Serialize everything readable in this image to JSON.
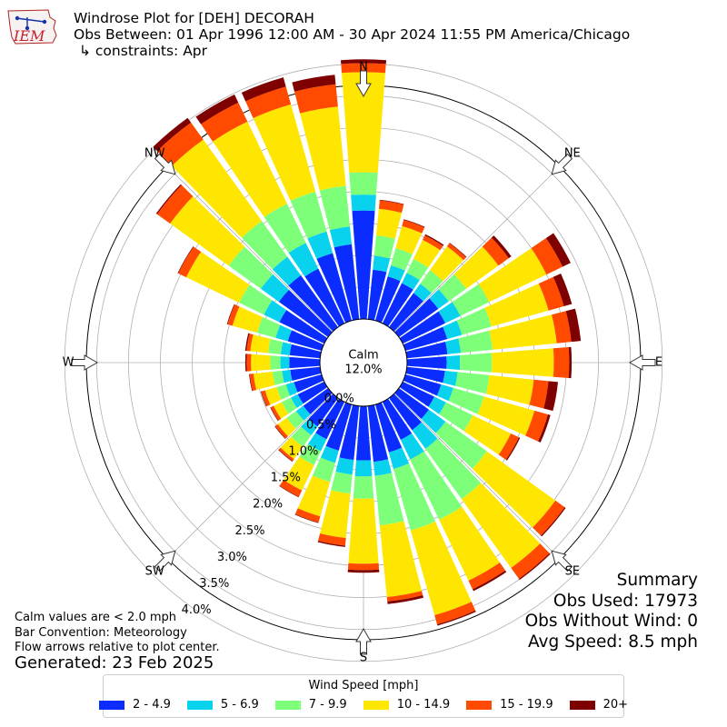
{
  "header": {
    "logo_text": "IEM",
    "title": "Windrose Plot for [DEH] DECORAH",
    "subtitle": "Obs Between: 01 Apr 1996 12:00 AM - 30 Apr 2024 11:55 PM America/Chicago",
    "constraints": "↳ constraints: Apr"
  },
  "notes": {
    "calm_note": "Calm values are < 2.0 mph",
    "bar_convention": "Bar Convention: Meteorology",
    "flow_note": "Flow arrows relative to plot center.",
    "generated": "Generated: 23 Feb 2025"
  },
  "summary": {
    "title": "Summary",
    "obs_used": "Obs Used: 17973",
    "obs_without_wind": "Obs Without Wind: 0",
    "avg_speed": "Avg Speed: 8.5 mph"
  },
  "legend": {
    "title": "Wind Speed [mph]",
    "items": [
      {
        "label": "2 - 4.9",
        "color": "#0a2cff"
      },
      {
        "label": "5 - 6.9",
        "color": "#08d2ee"
      },
      {
        "label": "7 - 9.9",
        "color": "#7dff7a"
      },
      {
        "label": "10 - 14.9",
        "color": "#ffe600"
      },
      {
        "label": "15 - 19.9",
        "color": "#ff4a00"
      },
      {
        "label": "20+",
        "color": "#7f0000"
      }
    ]
  },
  "chart_data": {
    "type": "windrose",
    "calm_label": "Calm",
    "calm_value": "12.0%",
    "radial_ticks": [
      "0.0%",
      "0.5%",
      "1.0%",
      "1.5%",
      "2.0%",
      "2.5%",
      "3.0%",
      "3.5%",
      "4.0%"
    ],
    "radial_tick_values": [
      0,
      0.5,
      1.0,
      1.5,
      2.0,
      2.5,
      3.0,
      3.5,
      4.0
    ],
    "compass_labels": [
      "N",
      "NE",
      "E",
      "SE",
      "S",
      "SW",
      "W",
      "NW"
    ],
    "speed_bins": [
      "2 - 4.9",
      "5 - 6.9",
      "7 - 9.9",
      "10 - 14.9",
      "15 - 19.9",
      "20+"
    ],
    "directions_deg": [
      0,
      10,
      20,
      30,
      40,
      50,
      60,
      70,
      80,
      90,
      100,
      110,
      120,
      130,
      140,
      150,
      160,
      170,
      180,
      190,
      200,
      210,
      220,
      230,
      240,
      250,
      260,
      270,
      280,
      290,
      300,
      310,
      320,
      330,
      340,
      350
    ],
    "cumulative_percent": [
      [
        1.7,
        1.95,
        2.3,
        3.87,
        4.01,
        4.07
      ],
      [
        0.78,
        1.0,
        1.32,
        1.74,
        1.87,
        1.88
      ],
      [
        0.72,
        0.9,
        1.18,
        1.54,
        1.64,
        1.65
      ],
      [
        0.7,
        0.88,
        1.12,
        1.45,
        1.53,
        1.55
      ],
      [
        0.66,
        0.84,
        1.1,
        1.56,
        1.62,
        1.63
      ],
      [
        0.76,
        0.96,
        1.3,
        1.92,
        2.12,
        2.17
      ],
      [
        0.74,
        1.0,
        1.5,
        2.5,
        2.78,
        2.92
      ],
      [
        0.68,
        0.92,
        1.4,
        2.33,
        2.58,
        2.71
      ],
      [
        0.64,
        0.85,
        1.35,
        2.36,
        2.59,
        2.74
      ],
      [
        0.62,
        0.83,
        1.33,
        2.3,
        2.54,
        2.58
      ],
      [
        0.6,
        0.8,
        1.3,
        2.0,
        2.23,
        2.38
      ],
      [
        0.58,
        0.78,
        1.28,
        2.1,
        2.32,
        2.36
      ],
      [
        0.55,
        0.75,
        1.22,
        1.88,
        2.02,
        2.04
      ],
      [
        0.58,
        0.9,
        1.7,
        3.02,
        3.2,
        3.22
      ],
      [
        0.62,
        0.98,
        1.95,
        3.28,
        3.49,
        3.51
      ],
      [
        0.66,
        1.0,
        2.05,
        3.11,
        3.26,
        3.29
      ],
      [
        0.78,
        1.05,
        2.05,
        3.43,
        3.58,
        3.6
      ],
      [
        0.88,
        1.1,
        1.88,
        3.01,
        3.08,
        3.12
      ],
      [
        0.85,
        1.1,
        1.45,
        2.47,
        2.57,
        2.61
      ],
      [
        0.85,
        1.08,
        1.38,
        2.08,
        2.2,
        2.22
      ],
      [
        0.75,
        0.95,
        1.26,
        1.82,
        1.92,
        1.93
      ],
      [
        0.65,
        0.86,
        1.1,
        1.54,
        1.65,
        1.66
      ],
      [
        0.55,
        0.72,
        0.94,
        1.18,
        1.22,
        1.23
      ],
      [
        0.48,
        0.62,
        0.8,
        0.97,
        1.02,
        1.03
      ],
      [
        0.46,
        0.58,
        0.74,
        0.88,
        0.93,
        0.94
      ],
      [
        0.45,
        0.58,
        0.73,
        0.92,
        0.98,
        0.99
      ],
      [
        0.47,
        0.6,
        0.75,
        1.05,
        1.11,
        1.12
      ],
      [
        0.48,
        0.62,
        0.78,
        1.08,
        1.15,
        1.17
      ],
      [
        0.48,
        0.62,
        0.82,
        1.1,
        1.16,
        1.18
      ],
      [
        0.55,
        0.75,
        1.05,
        1.45,
        1.53,
        1.54
      ],
      [
        0.78,
        1.05,
        1.48,
        2.4,
        2.54,
        2.55
      ],
      [
        0.95,
        1.3,
        1.92,
        3.05,
        3.3,
        3.32
      ],
      [
        1.0,
        1.36,
        2.05,
        3.62,
        3.95,
        4.04
      ],
      [
        0.95,
        1.4,
        2.08,
        3.51,
        3.84,
        3.98
      ],
      [
        1.1,
        1.45,
        2.1,
        3.52,
        3.81,
        3.96
      ],
      [
        1.18,
        1.46,
        2.1,
        3.35,
        3.7,
        3.85
      ]
    ]
  }
}
